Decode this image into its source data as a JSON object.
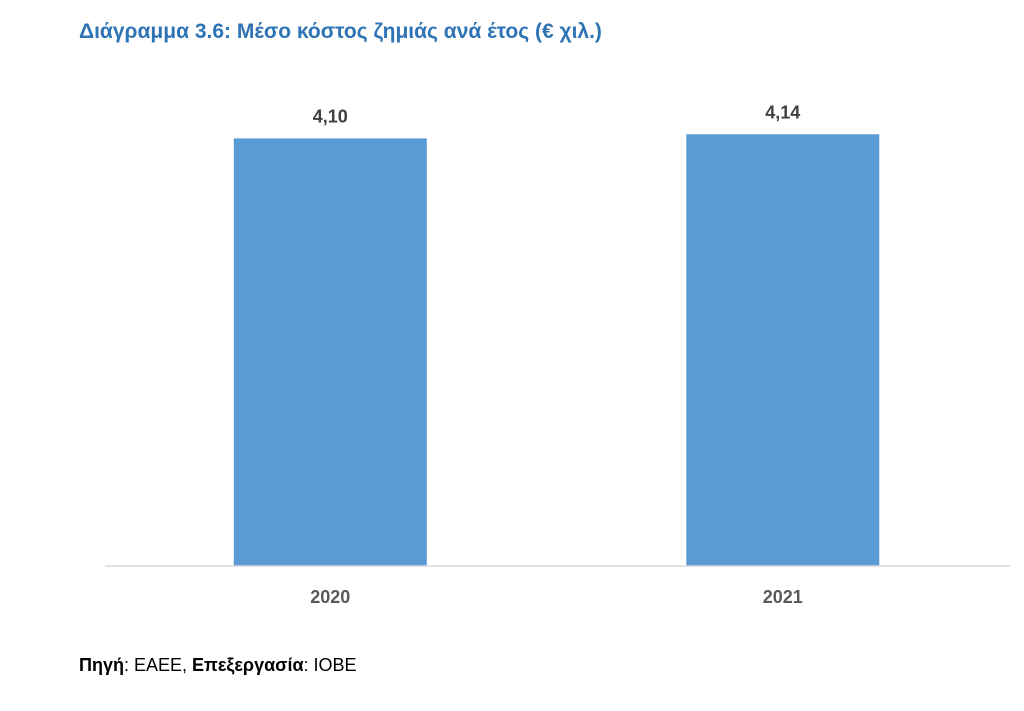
{
  "chart_data": {
    "type": "bar",
    "title": "Διάγραμμα 3.6: Μέσο κόστος ζημιάς ανά έτος (€ χιλ.)",
    "categories": [
      "2020",
      "2021"
    ],
    "values": [
      4.1,
      4.14
    ],
    "data_labels": [
      "4,10",
      "4,14"
    ],
    "xlabel": "",
    "ylabel": "",
    "ylim": [
      0,
      4.2
    ],
    "grid": false,
    "legend": "none"
  },
  "colors": {
    "bar": "#5B9BD5",
    "title": "#2E74B5",
    "axis": "#D9D9D9"
  },
  "source": {
    "source_label": "Πηγή",
    "source_sep": ": ",
    "source_value": "ΕΑΕΕ, ",
    "processing_label": "Επεξεργασία",
    "processing_sep": ": ",
    "processing_value": "ΙΟΒΕ"
  }
}
